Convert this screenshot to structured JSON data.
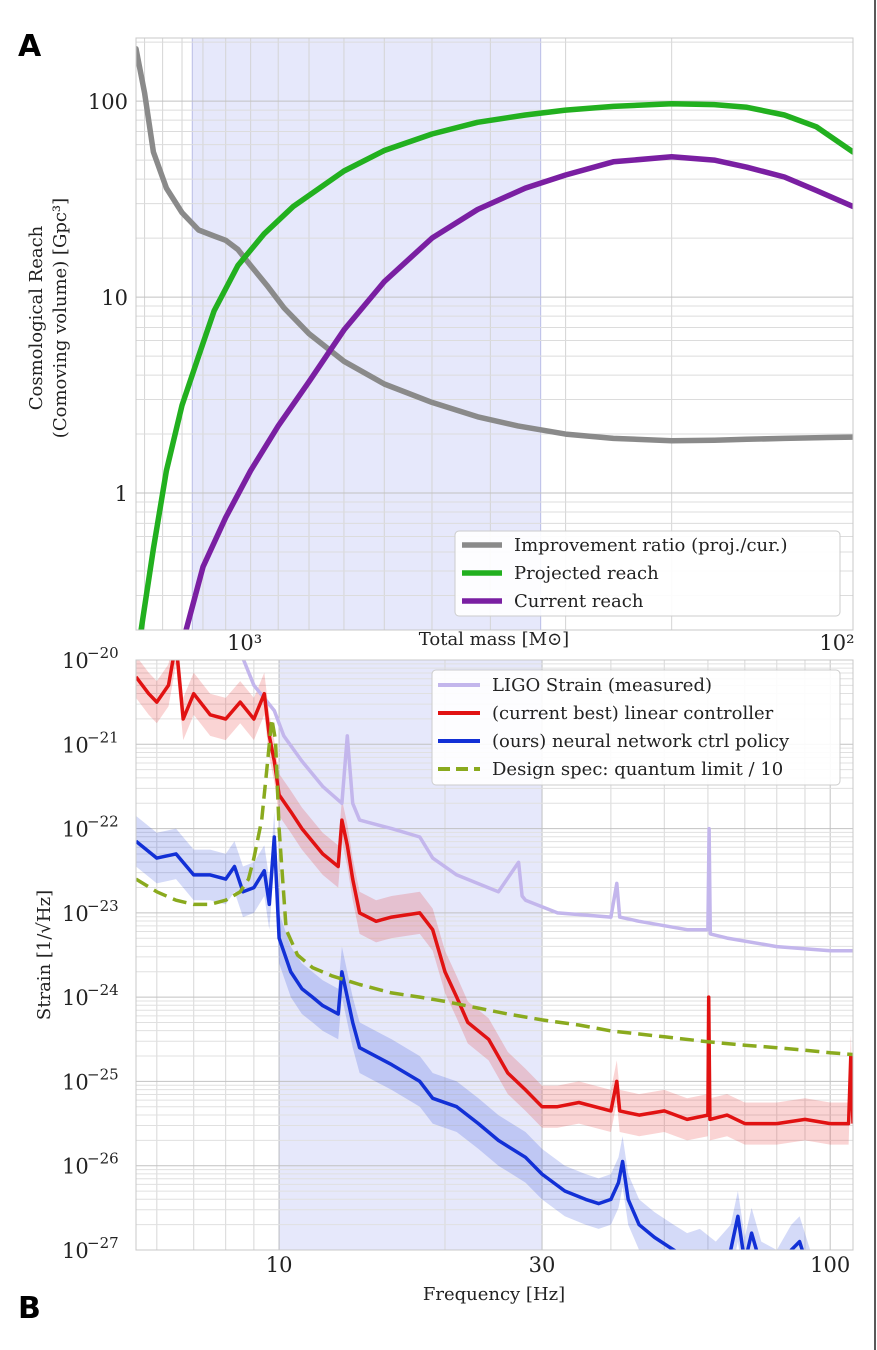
{
  "panel_labels": {
    "a": "A",
    "b": "B"
  },
  "chart_data": [
    {
      "type": "line",
      "panel": "A",
      "title": "",
      "xlabel": "Total mass [M⊙]",
      "ylabel_line1": "Cosmological Reach",
      "ylabel_line2": "(Comoving volume) [Gpc³]",
      "xscale": "log",
      "yscale": "log",
      "xlim": [
        1550,
        100
      ],
      "ylim": [
        0.2,
        210
      ],
      "x_ticks": [
        {
          "value": 1000,
          "label": "10³"
        },
        {
          "value": 100,
          "label": "10²"
        }
      ],
      "y_ticks": [
        {
          "value": 1,
          "label": "1"
        },
        {
          "value": 10,
          "label": "10"
        },
        {
          "value": 100,
          "label": "100"
        }
      ],
      "shaded_x_range": [
        1250,
        330
      ],
      "grid": true,
      "legend_position": "bottom-right",
      "series": [
        {
          "name": "Improvement ratio (proj./cur.)",
          "color": "#8a8a8a",
          "x": [
            1550,
            1500,
            1450,
            1380,
            1300,
            1220,
            1150,
            1100,
            1050,
            1000,
            940,
            880,
            800,
            700,
            600,
            500,
            420,
            360,
            300,
            250,
            200,
            170,
            150,
            130,
            110,
            100
          ],
          "y": [
            185,
            110,
            55,
            36,
            27,
            22,
            20.5,
            19.5,
            17.5,
            14.5,
            11.5,
            8.8,
            6.5,
            4.7,
            3.6,
            2.9,
            2.45,
            2.2,
            2.0,
            1.9,
            1.85,
            1.86,
            1.88,
            1.9,
            1.92,
            1.93
          ]
        },
        {
          "name": "Projected reach",
          "color": "#22b01f",
          "x": [
            1520,
            1450,
            1380,
            1300,
            1220,
            1150,
            1050,
            950,
            850,
            700,
            600,
            500,
            420,
            350,
            300,
            250,
            200,
            170,
            150,
            130,
            115,
            100
          ],
          "y": [
            0.2,
            0.52,
            1.3,
            2.8,
            5.0,
            8.5,
            14.5,
            21,
            29,
            44,
            56,
            68,
            78,
            85,
            90,
            94,
            97,
            96,
            93,
            85,
            74,
            55
          ]
        },
        {
          "name": "Current reach",
          "color": "#7a1fa2",
          "x": [
            1280,
            1200,
            1100,
            1000,
            900,
            800,
            700,
            600,
            500,
            420,
            350,
            300,
            250,
            200,
            170,
            150,
            130,
            115,
            100
          ],
          "y": [
            0.2,
            0.42,
            0.75,
            1.3,
            2.2,
            3.7,
            6.8,
            12,
            20,
            28,
            36,
            42,
            49,
            52,
            50,
            46,
            41,
            35,
            29
          ]
        }
      ]
    },
    {
      "type": "line",
      "panel": "B",
      "title": "",
      "xlabel": "Frequency [Hz]",
      "ylabel": "Strain [1/√Hz]",
      "xscale": "log",
      "yscale": "log",
      "xlim": [
        5.5,
        110
      ],
      "ylim": [
        1e-27,
        1e-20
      ],
      "x_ticks": [
        {
          "value": 10,
          "label": "10"
        },
        {
          "value": 30,
          "label": "30"
        },
        {
          "value": 100,
          "label": "100"
        }
      ],
      "y_ticks": [
        {
          "value": -20,
          "label": "10",
          "exp": "−20"
        },
        {
          "value": -21,
          "label": "10",
          "exp": "−21"
        },
        {
          "value": -22,
          "label": "10",
          "exp": "−22"
        },
        {
          "value": -23,
          "label": "10",
          "exp": "−23"
        },
        {
          "value": -24,
          "label": "10",
          "exp": "−24"
        },
        {
          "value": -25,
          "label": "10",
          "exp": "−25"
        },
        {
          "value": -26,
          "label": "10",
          "exp": "−26"
        },
        {
          "value": -27,
          "label": "10",
          "exp": "−27"
        }
      ],
      "shaded_x_range": [
        10,
        30
      ],
      "grid": true,
      "legend_position": "top-right",
      "series": [
        {
          "name": "LIGO Strain (measured)",
          "color": "#c3b6ec",
          "x": [
            8.5,
            9.0,
            9.8,
            10.2,
            11,
            12,
            13.0,
            13.3,
            13.6,
            14,
            16,
            18,
            19,
            21,
            25,
            27.2,
            27.6,
            28,
            32,
            40,
            41,
            41.5,
            45,
            55,
            60,
            60.3,
            60.6,
            65,
            80,
            100,
            110
          ],
          "y": [
            -19.9,
            -20.3,
            -20.6,
            -20.9,
            -21.2,
            -21.5,
            -21.7,
            -20.9,
            -21.7,
            -21.9,
            -22.0,
            -22.1,
            -22.35,
            -22.55,
            -22.75,
            -22.4,
            -22.8,
            -22.85,
            -23.0,
            -23.05,
            -22.65,
            -23.05,
            -23.1,
            -23.2,
            -23.2,
            -22.0,
            -23.25,
            -23.3,
            -23.4,
            -23.45,
            -23.45
          ]
        },
        {
          "name": "(current best) linear controller",
          "color": "#e11212",
          "band_width": 0.25,
          "x": [
            5.5,
            5.8,
            6.0,
            6.3,
            6.5,
            6.7,
            7.0,
            7.5,
            8.0,
            8.5,
            9.0,
            9.4,
            9.6,
            9.8,
            10.0,
            10.5,
            11,
            12,
            12.8,
            13.0,
            13.3,
            13.6,
            14,
            15,
            16,
            18,
            19,
            20,
            21,
            22,
            24,
            26,
            28,
            30,
            32,
            35,
            40,
            41,
            41.5,
            45,
            50,
            55,
            60,
            60.2,
            60.5,
            65,
            70,
            80,
            90,
            100,
            108,
            109,
            110
          ],
          "y": [
            -20.2,
            -20.4,
            -20.5,
            -20.3,
            -19.8,
            -20.7,
            -20.4,
            -20.65,
            -20.7,
            -20.5,
            -20.7,
            -20.4,
            -20.9,
            -21.2,
            -21.6,
            -21.8,
            -22.0,
            -22.3,
            -22.45,
            -21.9,
            -22.2,
            -22.6,
            -23.0,
            -23.1,
            -23.05,
            -23.0,
            -23.2,
            -23.7,
            -24.0,
            -24.3,
            -24.5,
            -24.9,
            -25.1,
            -25.3,
            -25.3,
            -25.25,
            -25.35,
            -25.0,
            -25.35,
            -25.4,
            -25.35,
            -25.45,
            -25.4,
            -24.0,
            -25.45,
            -25.4,
            -25.5,
            -25.5,
            -25.45,
            -25.5,
            -25.5,
            -24.7,
            -25.5
          ]
        },
        {
          "name": "(ours) neural network ctrl policy",
          "color": "#1230d6",
          "band_width": 0.3,
          "x": [
            5.5,
            6.0,
            6.5,
            7.0,
            7.5,
            8.0,
            8.3,
            8.6,
            9.0,
            9.4,
            9.6,
            9.8,
            10.0,
            10.5,
            11,
            11.5,
            12,
            12.8,
            13.0,
            13.3,
            13.6,
            14,
            16,
            18,
            19,
            21,
            23,
            25,
            28,
            30,
            33,
            36,
            38,
            40,
            41.3,
            42,
            43,
            45,
            48,
            52,
            55,
            58,
            62,
            66,
            68,
            70,
            72,
            75,
            80,
            85,
            88,
            92
          ],
          "y": [
            -22.15,
            -22.35,
            -22.3,
            -22.55,
            -22.55,
            -22.6,
            -22.45,
            -22.75,
            -22.7,
            -22.5,
            -22.9,
            -22.1,
            -23.3,
            -23.7,
            -23.9,
            -24.0,
            -24.1,
            -24.2,
            -23.7,
            -24.0,
            -24.3,
            -24.6,
            -24.8,
            -25.0,
            -25.2,
            -25.3,
            -25.5,
            -25.7,
            -25.9,
            -26.1,
            -26.3,
            -26.4,
            -26.45,
            -26.4,
            -26.2,
            -25.95,
            -26.4,
            -26.7,
            -26.85,
            -27.0,
            -27.1,
            -27.05,
            -27.2,
            -27.0,
            -26.6,
            -27.15,
            -26.8,
            -27.2,
            -27.3,
            -27.0,
            -26.9,
            -27.3
          ]
        },
        {
          "name": "Design spec: quantum limit / 10",
          "color": "#8aaa1e",
          "dashed": true,
          "x": [
            5.5,
            6.0,
            6.5,
            7.0,
            7.5,
            8.0,
            8.5,
            8.8,
            9.0,
            9.3,
            9.5,
            9.7,
            9.85,
            10.0,
            10.3,
            10.8,
            11.5,
            12.5,
            14,
            16,
            18,
            20,
            23,
            26,
            30,
            35,
            40,
            50,
            60,
            70,
            80,
            90,
            100,
            110
          ],
          "y": [
            -22.6,
            -22.75,
            -22.85,
            -22.9,
            -22.9,
            -22.85,
            -22.75,
            -22.6,
            -22.35,
            -21.9,
            -21.3,
            -20.7,
            -20.95,
            -22.0,
            -23.2,
            -23.5,
            -23.65,
            -23.75,
            -23.85,
            -23.95,
            -24.0,
            -24.05,
            -24.13,
            -24.2,
            -24.27,
            -24.33,
            -24.4,
            -24.47,
            -24.53,
            -24.57,
            -24.6,
            -24.63,
            -24.66,
            -24.68
          ]
        }
      ]
    }
  ]
}
